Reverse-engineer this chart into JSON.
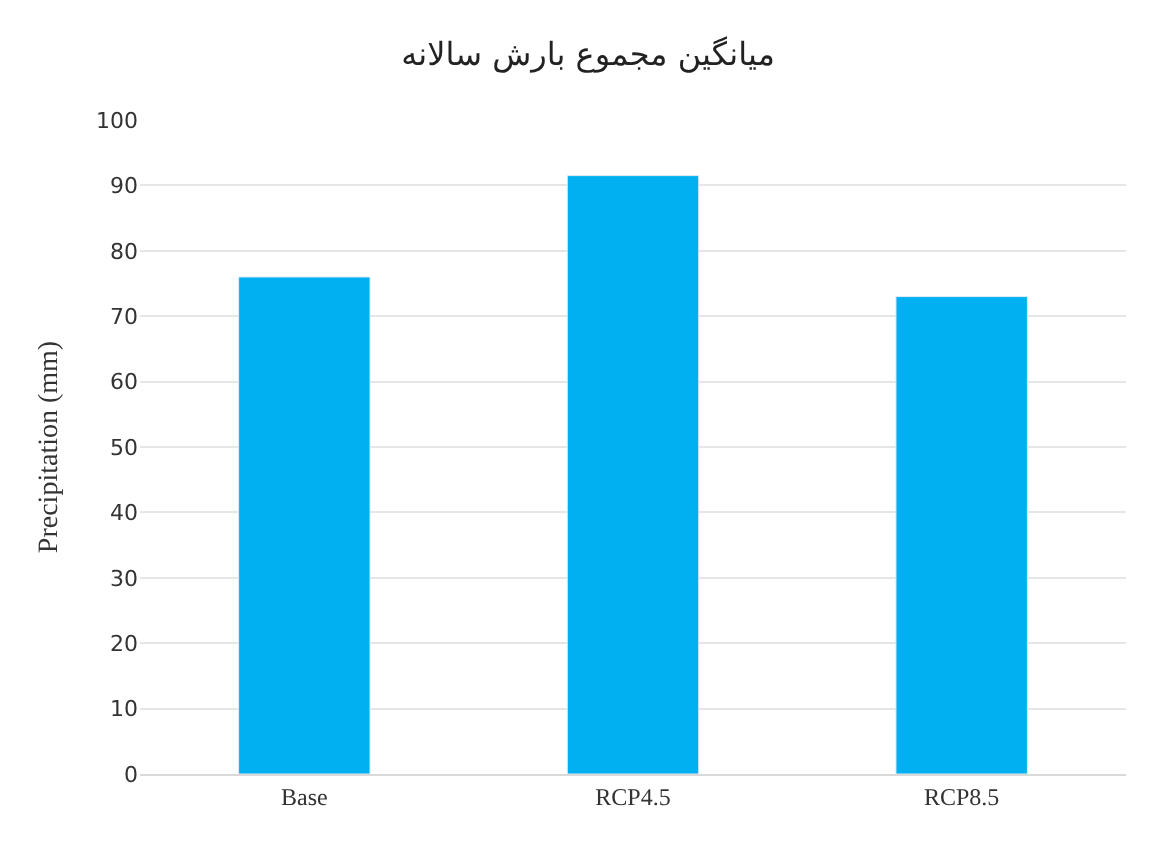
{
  "chart_data": {
    "type": "bar",
    "title": "میانگین مجموع بارش سالانه",
    "ylabel": "Precipitation (mm)",
    "categories": [
      "Base",
      "RCP4.5",
      "RCP8.5"
    ],
    "values": [
      76,
      91.5,
      73
    ],
    "color": "#00b0f0",
    "ylim": [
      0,
      100
    ],
    "yticks": [
      0,
      10,
      20,
      30,
      40,
      50,
      60,
      70,
      80,
      90,
      100
    ],
    "grid": "y"
  }
}
